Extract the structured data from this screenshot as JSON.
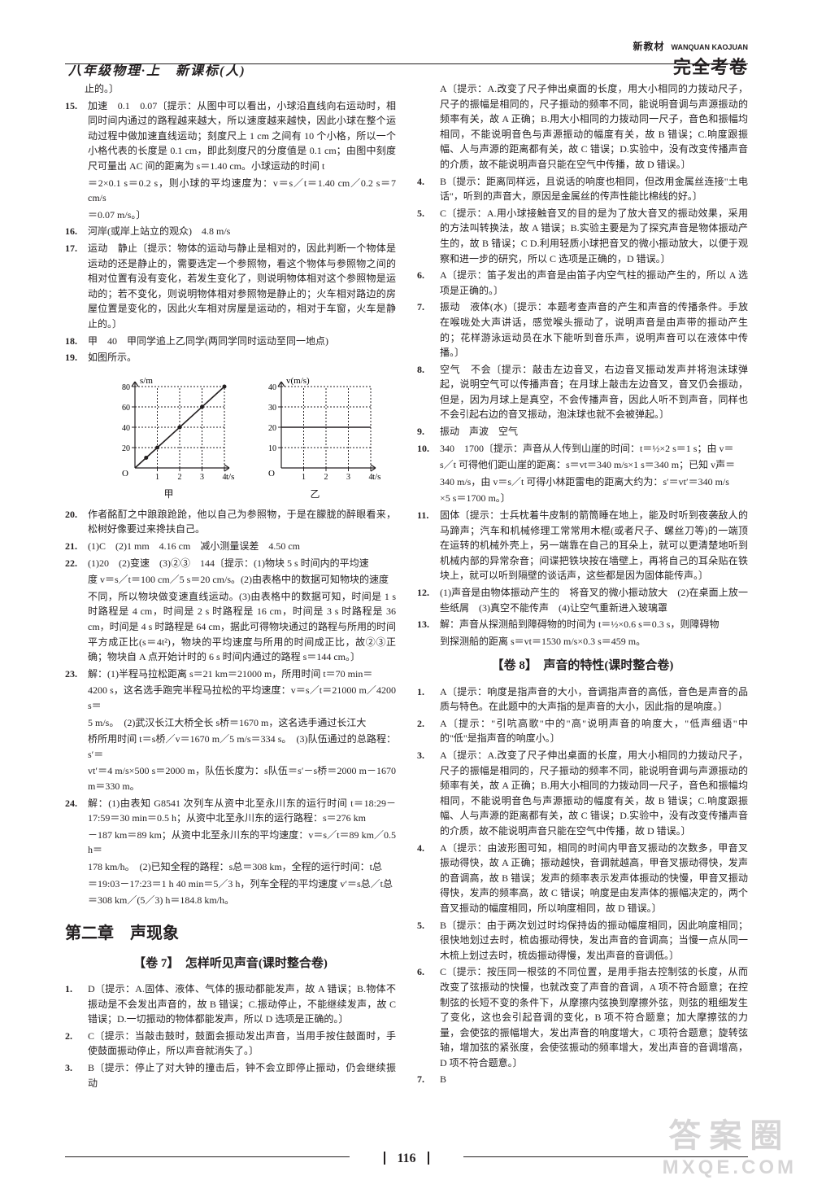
{
  "header": {
    "left": "八年级物理·上　新课标(人)",
    "brand_top": "新教材",
    "brand_top_en": "WANQUAN KAOJUAN",
    "brand_bottom": "完全考卷"
  },
  "footer": {
    "page": "116"
  },
  "watermark": {
    "top": "答案圈",
    "bottom": "MXQE.COM"
  },
  "left_col": {
    "p_stop": "止的。〕",
    "i15": "15.",
    "t15": "加速　0.1　0.07〔提示：从图中可以看出，小球沿直线向右运动时，相同时间内通过的路程越来越大，所以速度越来越快，因此小球在整个运动过程中做加速直线运动；刻度尺上 1 cm 之间有 10 个小格，所以一个小格代表的长度是 0.1 cm，即此刻度尺的分度值是 0.1 cm；由图中刻度尺可量出 AC 间的距离为 s＝1.40 cm。小球运动的时间 t",
    "f15a": "＝2×0.1 s＝0.2 s，则小球的平均速度为：v＝s／t＝1.40 cm／0.2 s＝7 cm/s",
    "f15b": "＝0.07 m/s。〕",
    "i16": "16.",
    "t16": "河岸(或岸上站立的观众)　4.8 m/s",
    "i17": "17.",
    "t17": "运动　静止〔提示：物体的运动与静止是相对的，因此判断一个物体是运动的还是静止的，需要选定一个参照物，看这个物体与参照物之间的相对位置有没有变化，若发生变化了，则说明物体相对这个参照物是运动的；若不变化，则说明物体相对参照物是静止的；火车相对路边的房屋位置是变化的，因此火车相对房屋是运动的，相对于车窗，火车是静止的。〕",
    "i18": "18.",
    "t18": "甲　40　甲同学追上乙同学(两同学同时运动至同一地点)",
    "i19": "19.",
    "t19": "如图所示。",
    "chart_jia": {
      "axis_color": "#231f20",
      "xlabel": "t/s",
      "ylabel": "s/m",
      "caption": "甲",
      "xticks": [
        "1",
        "2",
        "3",
        "4"
      ],
      "yticks": [
        "20",
        "40",
        "60",
        "80"
      ],
      "line_points": [
        [
          0,
          0
        ],
        [
          4,
          80
        ]
      ],
      "points": [
        [
          0.5,
          10
        ],
        [
          1,
          20
        ],
        [
          2,
          40
        ],
        [
          3,
          60
        ],
        [
          4,
          80
        ]
      ]
    },
    "chart_yi": {
      "axis_color": "#231f20",
      "xlabel": "t/s",
      "ylabel": "v(m/s)",
      "caption": "乙",
      "xticks": [
        "1",
        "2",
        "3",
        "4"
      ],
      "yticks": [
        "10",
        "20",
        "30",
        "40"
      ],
      "line_points": [
        [
          0,
          20
        ],
        [
          4,
          20
        ]
      ]
    },
    "i20": "20.",
    "t20": "作者酩酊之中踉踉跄跄，他以自己为参照物，于是在朦胧的醉眼看来，松树好像要过来搀扶自己。",
    "i21": "21.",
    "t21": "(1)C　(2)1 mm　4.16 cm　减小测量误差　4.50 cm",
    "i22": "22.",
    "t22": "(1)20　(2)变速　(3)②③　144〔提示：(1)物块 5 s 时间内的平均速",
    "f22a": "度 v＝s／t＝100 cm／5 s＝20 cm/s。(2)由表格中的数据可知物块的速度",
    "t22b": "不同，所以物块做变速直线运动。(3)由表格中的数据可知，时间是 1 s 时路程是 4 cm，时间是 2 s 时路程是 16 cm，时间是 3 s 时路程是 36 cm，时间是 4 s 时路程是 64 cm，据此可得物块通过的路程与所用的时间平方成正比(s＝4t²)，物块的平均速度与所用的时间成正比，故②③正确；物块自 A 点开始计时的 6 s 时间内通过的路程 s＝144 cm。〕",
    "i23": "23.",
    "t23": "解：(1)半程马拉松距离 s＝21 km＝21000 m，所用时间 t＝70 min＝",
    "f23a": "4200 s，这名选手跑完半程马拉松的平均速度：v＝s／t＝21000 m／4200 s＝",
    "f23b": "5 m/s。　(2)武汉长江大桥全长 s桥＝1670 m，这名选手通过长江大",
    "f23c": "桥所用时间 t＝s桥／v＝1670 m／5 m/s＝334 s。　(3)队伍通过的总路程：s′＝",
    "f23d": "vt′＝4 m/s×500 s＝2000 m，队伍长度为：s队伍＝s′－s桥＝2000 m－1670 m＝330 m。",
    "i24": "24.",
    "t24": "解：(1)由表知 G8541 次列车从资中北至永川东的运行时间 t＝18:29－17:59＝30 min＝0.5 h；从资中北至永川东的运行路程：s＝276 km",
    "f24a": "－187 km＝89 km；从资中北至永川东的平均速度：v＝s／t＝89 km／0.5 h＝",
    "f24b": "178 km/h。　(2)已知全程的路程：s总＝308 km，全程的运行时间：t总",
    "f24c": "＝19:03－17:23＝1 h 40 min＝5／3 h，列车全程的平均速度 v′＝s总／t总",
    "f24d": "＝308 km／(5／3) h＝184.8 km/h。",
    "chapter": "第二章　声现象",
    "sub7": "【卷 7】　怎样听见声音(课时整合卷)",
    "i1b": "1.",
    "t1b": "D〔提示：A.固体、液体、气体的振动都能发声，故 A 错误；B.物体不振动是不会发出声音的，故 B 错误；C.振动停止，不能继续发声，故 C 错误；D.一切振动的物体都能发声，所以 D 选项是正确的。〕",
    "i2b": "2.",
    "t2b": "C〔提示：当敲击鼓时，鼓面会振动发出声音，当用手按住鼓面时，手使鼓面振动停止，所以声音就消失了。〕",
    "i3b": "3.",
    "t3b": "B〔提示：停止了对大钟的撞击后，钟不会立即停止振动，仍会继续振动"
  },
  "right_col": {
    "t3c": "A〔提示：A.改变了尺子伸出桌面的长度，用大小相同的力拨动尺子，尺子的振幅是相同的，尺子振动的频率不同，能说明音调与声源振动的频率有关，故 A 正确；B.用大小相同的力拨动同一尺子，音色和振幅均相同，不能说明音色与声源振动的幅度有关，故 B 错误；C.响度跟振幅、人与声源的距离都有关，故 C 错误；D.实验中，没有改变传播声音的介质，故不能说明声音只能在空气中传播，故 D 错误。〕",
    "i4": "4.",
    "t4": "B〔提示：距离同样远，且说话的响度也相同，但改用金属丝连接\"土电话\"，听到的声音大，原因是金属丝的传声性能比棉线的好。〕",
    "i5": "5.",
    "t5": "C〔提示：A.用小球接触音叉的目的是为了放大音叉的振动效果，采用的方法叫转换法，故 A 错误；B.实验主要是为了探究声音是物体振动产生的，故 B 错误；C D.利用轻质小球把音叉的微小振动放大，以便于观察和进一步的研究，所以 C 选项是正确的，D 错误。〕",
    "i6": "6.",
    "t6": "A〔提示：笛子发出的声音是由笛子内空气柱的振动产生的，所以 A 选项是正确的。〕",
    "i7": "7.",
    "t7": "振动　液体(水)〔提示：本题考查声音的产生和声音的传播条件。手放在喉咙处大声讲话，感觉喉头振动了，说明声音是由声带的振动产生的；花样游泳运动员在水下能听到音乐声，说明声音可以在液体中传播。〕",
    "i8": "8.",
    "t8": "空气　不会〔提示：敲击左边音叉，右边音叉振动发声并将泡沫球弹起，说明空气可以传播声音；在月球上敲击左边音叉，音叉仍会振动，但是，因为月球上是真空，不会传播声音，因此人听不到声音，同样也不会引起右边的音叉振动，泡沫球也就不会被弹起。〕",
    "i9": "9.",
    "t9": "振动　声波　空气",
    "i10": "10.",
    "t10": "340　1700〔提示：声音从人传到山崖的时间：t＝½×2 s＝1 s；由 v＝",
    "f10a": "s／t 可得他们距山崖的距离：s＝vt＝340 m/s×1 s＝340 m；已知 v声＝",
    "f10b": "340 m/s，由 v＝s／t 可得小林距雷电的距离大约为：s′＝vt′＝340 m/s",
    "f10c": "×5 s＝1700 m。〕",
    "i11": "11.",
    "t11": "固体〔提示：士兵枕着牛皮制的箭筒睡在地上，能及时听到夜袭敌人的马蹄声；汽车和机械修理工常常用木棍(或者尺子、螺丝刀等)的一端顶在运转的机械外壳上，另一端靠在自己的耳朵上，就可以更清楚地听到机械内部的异常杂音；间谍把铁块按在墙壁上，再将自己的耳朵贴在铁块上，就可以听到隔壁的谈话声，这些都是因为固体能传声。〕",
    "i12": "12.",
    "t12": "(1)声音是由物体振动产生的　将音叉的微小振动放大　(2)在桌面上放一些纸屑　(3)真空不能传声　(4)让空气重新进入玻璃罩",
    "i13": "13.",
    "t13": "解：声音从探测船到障碍物的时间为 t＝½×0.6 s＝0.3 s，则障碍物",
    "f13a": "到探测船的距离 s＝vt＝1530 m/s×0.3 s＝459 m。",
    "sub8": "【卷 8】　声音的特性(课时整合卷)",
    "i1c": "1.",
    "t1c": "A〔提示：响度是指声音的大小，音调指声音的高低，音色是声音的品质与特色。在此题中的大声指的是声音的大小，因此指的是响度。〕",
    "i2c": "2.",
    "t2c": "A〔提示：\"引吭高歌\"中的\"高\"说明声音的响度大，\"低声细语\"中的\"低\"是指声音的响度小。〕",
    "i3c": "3.",
    "i4c": "4.",
    "t4c": "A〔提示：由波形图可知，相同的时间内甲音叉振动的次数多，甲音叉振动得快，故 A 正确；振动越快，音调就越高，甲音叉振动得快，发声的音调高，故 B 错误；发声的频率表示发声体振动的快慢，甲音叉振动得快，发声的频率高，故 C 错误；响度是由发声体的振幅决定的，两个音叉振动的幅度相同，所以响度相同，故 D 错误。〕",
    "i5c": "5.",
    "t5c": "B〔提示：由于两次划过时均保持齿的振动幅度相同，因此响度相同；很快地划过去时，梳齿振动得快，发出声音的音调高；当慢一点从同一木梳上划过去时，梳齿振动得慢，发出声音的音调低。〕",
    "i6c": "6.",
    "t6c": "C〔提示：按压同一根弦的不同位置，是用手指去控制弦的长度，从而改变了弦振动的快慢，也就改变了声音的音调，A 项不符合题意；在控制弦的长短不变的条件下，从摩擦内弦换到摩擦外弦，则弦的粗细发生了变化，这也会引起音调的变化，B 项不符合题意；加大摩擦弦的力量，会使弦的振幅增大，发出声音的响度增大，C 项符合题意；旋转弦轴，增加弦的紧张度，会使弦振动的频率增大，发出声音的音调增高，D 项不符合题意。〕",
    "i7c": "7.",
    "t7c": "B"
  }
}
